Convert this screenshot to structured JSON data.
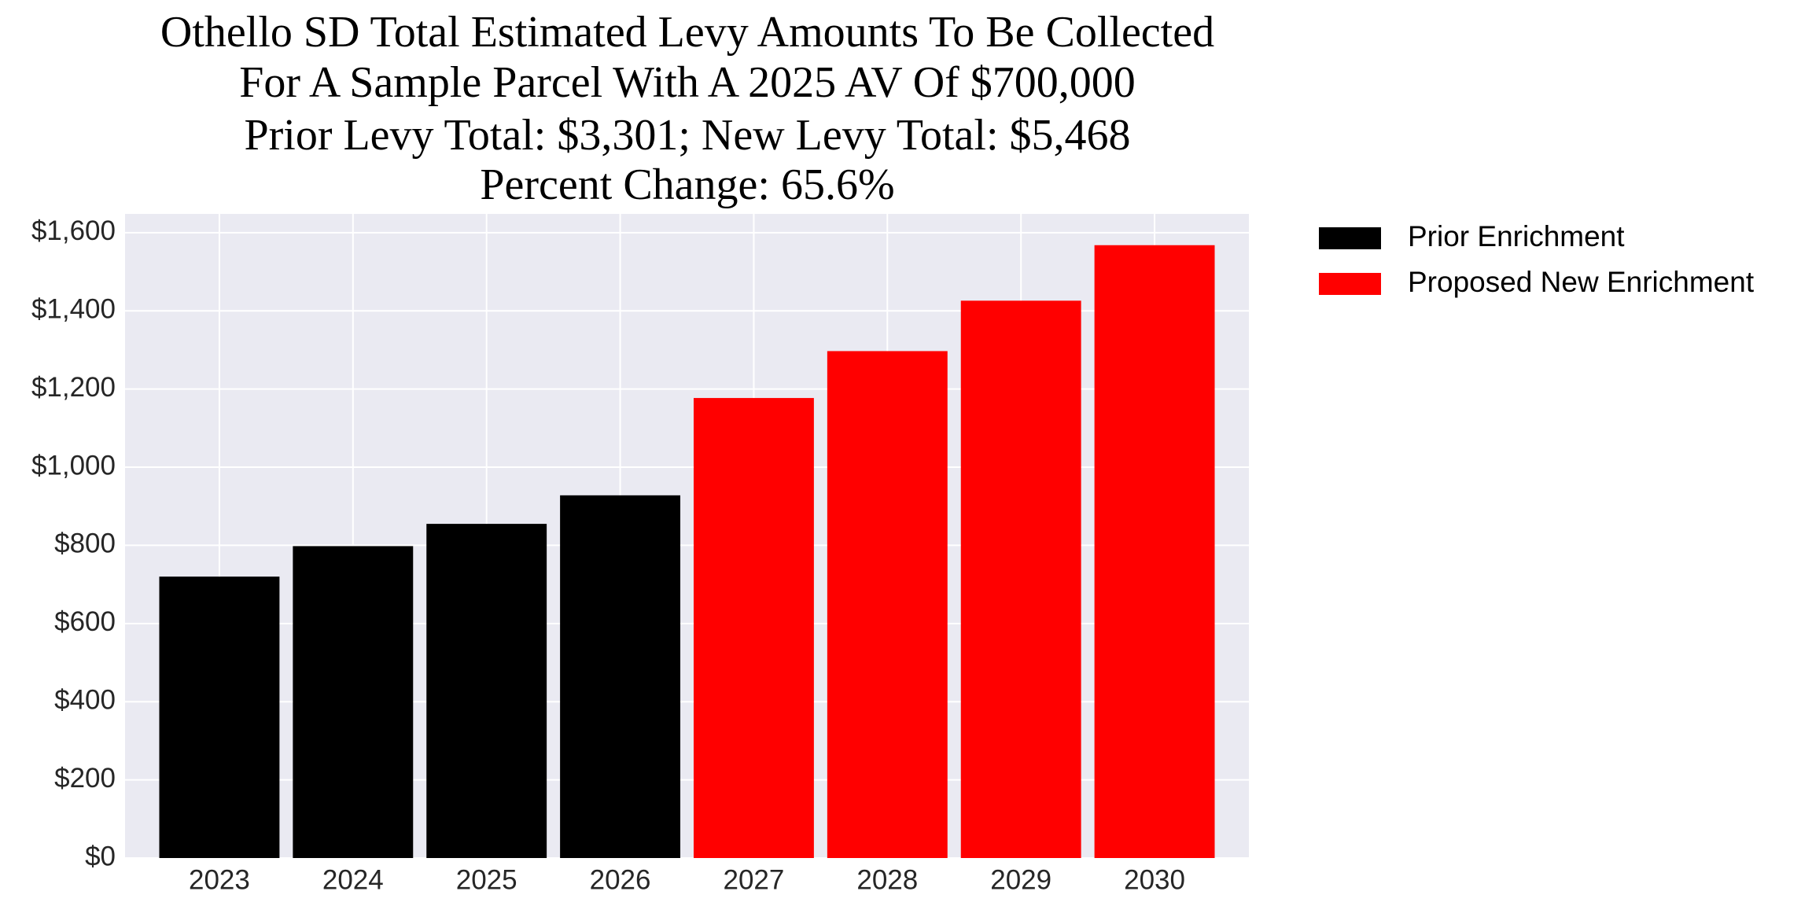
{
  "chart_data": {
    "type": "bar",
    "title": [
      "Othello SD Total Estimated Levy Amounts To Be Collected",
      "For A Sample Parcel With A 2025 AV Of $700,000",
      "Prior Levy Total:  $3,301; New Levy Total: $5,468",
      "Percent Change: 65.6%"
    ],
    "categories": [
      "2023",
      "2024",
      "2025",
      "2026",
      "2027",
      "2028",
      "2029",
      "2030"
    ],
    "series": [
      {
        "name": "Prior Enrichment",
        "color": "#000000",
        "values": [
          720,
          798,
          855,
          928,
          null,
          null,
          null,
          null
        ]
      },
      {
        "name": "Proposed New Enrichment",
        "color": "#ff0000",
        "values": [
          null,
          null,
          null,
          null,
          1177,
          1297,
          1426,
          1568
        ]
      }
    ],
    "ylim": [
      0,
      1648
    ],
    "yticks": [
      {
        "value": 0,
        "label": "$0"
      },
      {
        "value": 200,
        "label": "$200"
      },
      {
        "value": 400,
        "label": "$400"
      },
      {
        "value": 600,
        "label": "$600"
      },
      {
        "value": 800,
        "label": "$800"
      },
      {
        "value": 1000,
        "label": "$1,000"
      },
      {
        "value": 1200,
        "label": "$1,200"
      },
      {
        "value": 1400,
        "label": "$1,400"
      },
      {
        "value": 1600,
        "label": "$1,600"
      }
    ],
    "grid": true,
    "legend": "outside-upper-right"
  }
}
